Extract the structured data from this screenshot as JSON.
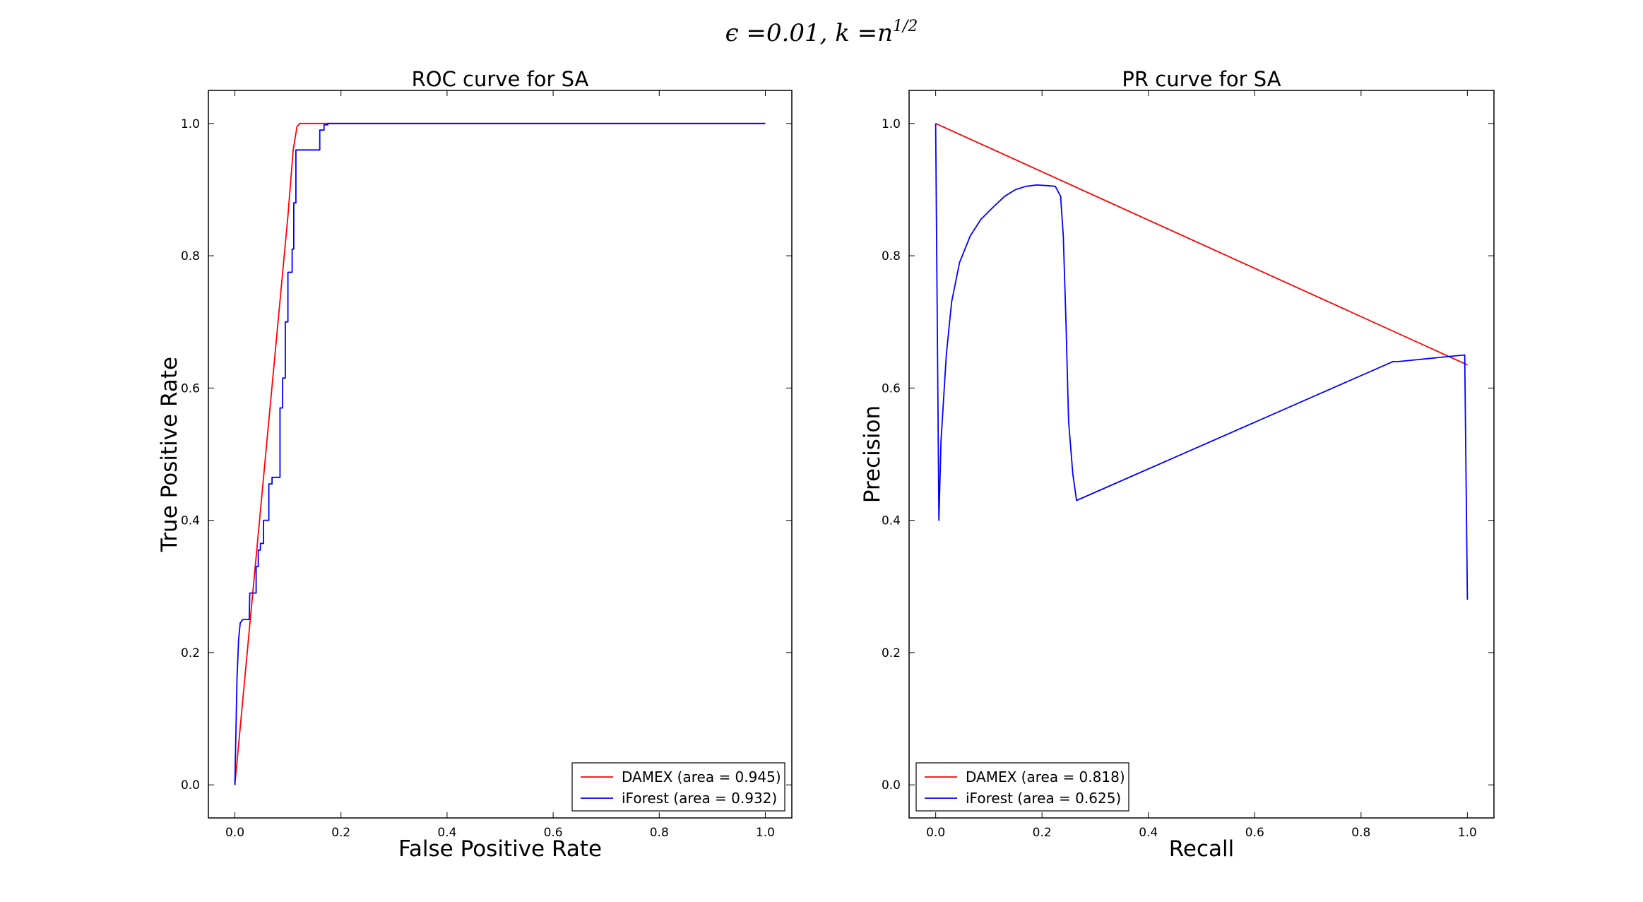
{
  "figure": {
    "suptitle": "ε =0.01, k =n^1/2"
  },
  "chart_data": [
    {
      "type": "line",
      "title": "ROC curve for SA",
      "xlabel": "False Positive Rate",
      "ylabel": "True Positive Rate",
      "xlim": [
        -0.05,
        1.05
      ],
      "ylim": [
        -0.05,
        1.05
      ],
      "xticks": [
        "0.0",
        "0.2",
        "0.4",
        "0.6",
        "0.8",
        "1.0"
      ],
      "yticks": [
        "0.0",
        "0.2",
        "0.4",
        "0.6",
        "0.8",
        "1.0"
      ],
      "grid": false,
      "legend_position": "lower-right",
      "series": [
        {
          "name": "DAMEX (area = 0.945)",
          "color": "#ff0000",
          "points": [
            [
              0.0,
              0.0
            ],
            [
              0.1,
              0.86
            ],
            [
              0.11,
              0.96
            ],
            [
              0.117,
              0.995
            ],
            [
              0.122,
              1.0
            ],
            [
              1.0,
              1.0
            ]
          ]
        },
        {
          "name": "iForest (area = 0.932)",
          "color": "#0000ff",
          "points": [
            [
              0.0,
              0.0
            ],
            [
              0.002,
              0.08
            ],
            [
              0.004,
              0.16
            ],
            [
              0.007,
              0.22
            ],
            [
              0.01,
              0.245
            ],
            [
              0.015,
              0.25
            ],
            [
              0.027,
              0.25
            ],
            [
              0.028,
              0.29
            ],
            [
              0.04,
              0.29
            ],
            [
              0.04,
              0.33
            ],
            [
              0.044,
              0.33
            ],
            [
              0.044,
              0.355
            ],
            [
              0.048,
              0.355
            ],
            [
              0.048,
              0.365
            ],
            [
              0.054,
              0.365
            ],
            [
              0.054,
              0.4
            ],
            [
              0.064,
              0.4
            ],
            [
              0.064,
              0.455
            ],
            [
              0.07,
              0.455
            ],
            [
              0.07,
              0.465
            ],
            [
              0.085,
              0.465
            ],
            [
              0.085,
              0.57
            ],
            [
              0.09,
              0.57
            ],
            [
              0.09,
              0.615
            ],
            [
              0.095,
              0.615
            ],
            [
              0.095,
              0.7
            ],
            [
              0.1,
              0.7
            ],
            [
              0.1,
              0.775
            ],
            [
              0.108,
              0.775
            ],
            [
              0.108,
              0.81
            ],
            [
              0.111,
              0.81
            ],
            [
              0.111,
              0.88
            ],
            [
              0.115,
              0.88
            ],
            [
              0.115,
              0.96
            ],
            [
              0.16,
              0.96
            ],
            [
              0.16,
              0.99
            ],
            [
              0.168,
              0.99
            ],
            [
              0.168,
              0.998
            ],
            [
              0.175,
              0.998
            ],
            [
              0.175,
              1.0
            ],
            [
              1.0,
              1.0
            ]
          ]
        }
      ]
    },
    {
      "type": "line",
      "title": "PR curve for SA",
      "xlabel": "Recall",
      "ylabel": "Precision",
      "xlim": [
        -0.05,
        1.05
      ],
      "ylim": [
        -0.05,
        1.05
      ],
      "xticks": [
        "0.0",
        "0.2",
        "0.4",
        "0.6",
        "0.8",
        "1.0"
      ],
      "yticks": [
        "0.0",
        "0.2",
        "0.4",
        "0.6",
        "0.8",
        "1.0"
      ],
      "grid": false,
      "legend_position": "lower-left",
      "series": [
        {
          "name": "DAMEX (area = 0.818)",
          "color": "#ff0000",
          "points": [
            [
              0.0,
              1.0
            ],
            [
              1.0,
              0.635
            ]
          ]
        },
        {
          "name": "iForest (area = 0.625)",
          "color": "#0000ff",
          "points": [
            [
              0.0,
              1.0
            ],
            [
              0.006,
              0.4
            ],
            [
              0.01,
              0.52
            ],
            [
              0.02,
              0.65
            ],
            [
              0.03,
              0.73
            ],
            [
              0.045,
              0.79
            ],
            [
              0.065,
              0.83
            ],
            [
              0.085,
              0.855
            ],
            [
              0.11,
              0.875
            ],
            [
              0.13,
              0.89
            ],
            [
              0.15,
              0.9
            ],
            [
              0.17,
              0.905
            ],
            [
              0.19,
              0.907
            ],
            [
              0.21,
              0.906
            ],
            [
              0.225,
              0.905
            ],
            [
              0.235,
              0.89
            ],
            [
              0.24,
              0.83
            ],
            [
              0.245,
              0.7
            ],
            [
              0.25,
              0.55
            ],
            [
              0.258,
              0.47
            ],
            [
              0.265,
              0.43
            ],
            [
              0.86,
              0.64
            ],
            [
              0.87,
              0.64
            ],
            [
              0.995,
              0.65
            ],
            [
              1.0,
              0.28
            ]
          ]
        }
      ]
    }
  ]
}
